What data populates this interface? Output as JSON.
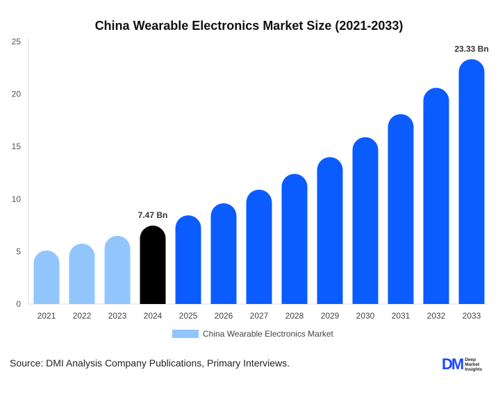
{
  "chart_data": {
    "type": "bar",
    "title": "China Wearable Electronics Market Size (2021-2033)",
    "categories": [
      "2021",
      "2022",
      "2023",
      "2024",
      "2025",
      "2026",
      "2027",
      "2028",
      "2029",
      "2030",
      "2031",
      "2032",
      "2033"
    ],
    "series": [
      {
        "name": "China Wearable Electronics Market",
        "values": [
          5.1,
          5.75,
          6.5,
          7.47,
          8.45,
          9.6,
          10.9,
          12.4,
          14.0,
          15.9,
          18.1,
          20.6,
          23.33
        ]
      }
    ],
    "data_labels": [
      {
        "category": "2024",
        "text": "7.47 Bn"
      },
      {
        "category": "2033",
        "text": "23.33 Bn"
      }
    ],
    "ylim": [
      0,
      25
    ],
    "yticks": [
      0,
      5,
      10,
      15,
      20,
      25
    ],
    "xlabel": "",
    "ylabel": "",
    "grid": false,
    "legend": "bottom-center",
    "colors": {
      "historic": "#93c5fd",
      "current": "#000000",
      "forecast": "#0b5cff"
    }
  },
  "footer": {
    "source": "Source: DMI Analysis Company Publications, Primary Interviews."
  },
  "logo": {
    "mark": "DM",
    "line1": "Deep",
    "line2": "Market",
    "line3": "Insights"
  }
}
